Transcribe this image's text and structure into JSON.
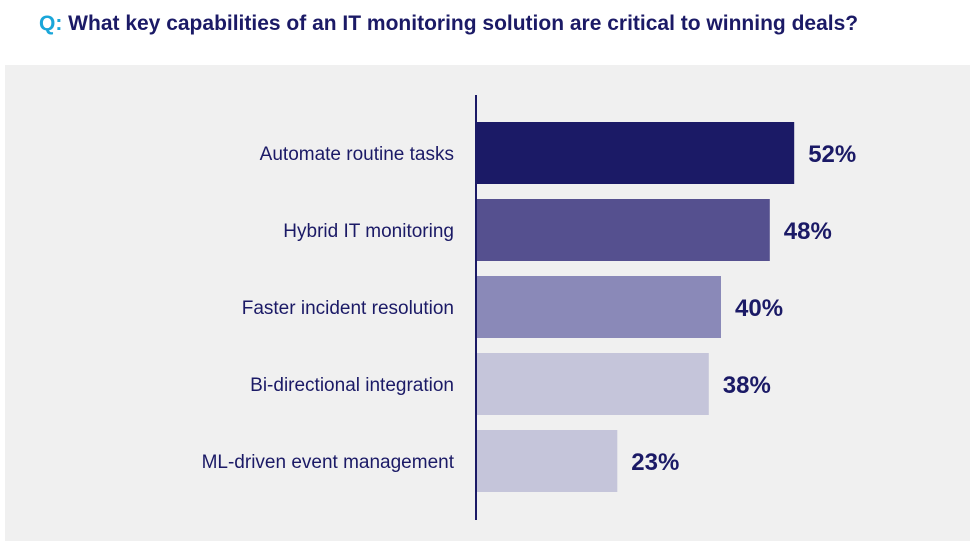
{
  "title": {
    "prefix": "Q:",
    "text": "What key capabilities of an IT monitoring solution are critical to winning deals?"
  },
  "chart_data": {
    "type": "bar",
    "orientation": "horizontal",
    "categories": [
      "Automate routine tasks",
      "Hybrid IT monitoring",
      "Faster incident resolution",
      "Bi-directional integration",
      "ML-driven event management"
    ],
    "values": [
      52,
      48,
      40,
      38,
      23
    ],
    "value_labels": [
      "52%",
      "48%",
      "40%",
      "38%",
      "23%"
    ],
    "bar_colors": [
      "#1b1a66",
      "#55508f",
      "#8a89b8",
      "#c5c5da",
      "#c5c5da"
    ],
    "label_color": "#1b1a66",
    "xlim": [
      0,
      100
    ],
    "grid": false,
    "legend": "none"
  }
}
